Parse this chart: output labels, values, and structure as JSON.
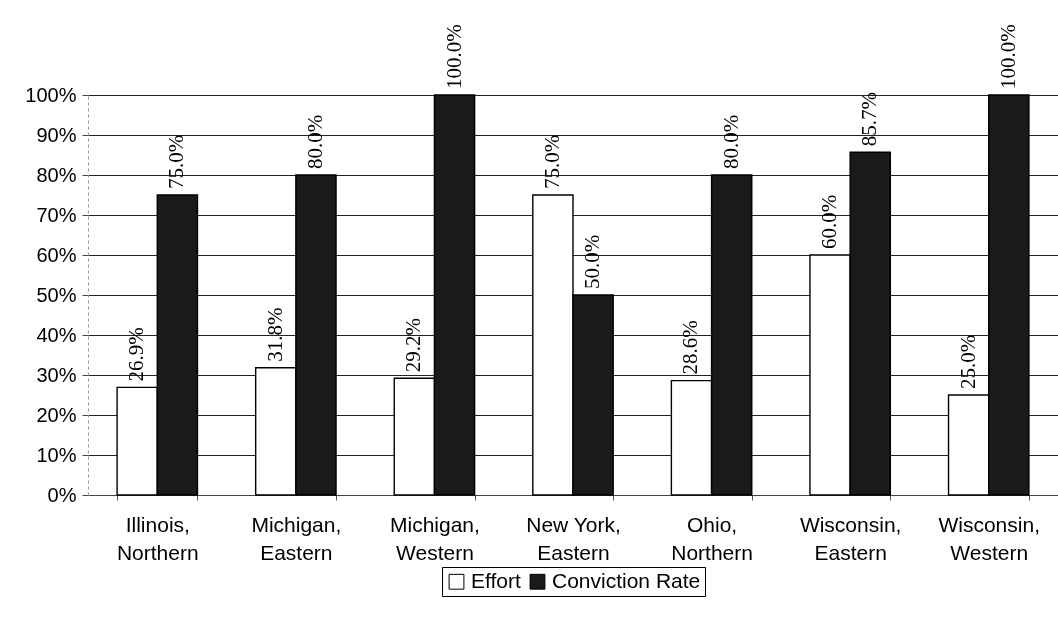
{
  "chart_data": {
    "type": "bar",
    "categories": [
      "Illinois, Northern",
      "Michigan, Eastern",
      "Michigan, Western",
      "New York, Eastern",
      "Ohio, Northern",
      "Wisconsin, Eastern",
      "Wisconsin, Western"
    ],
    "series": [
      {
        "name": "Effort",
        "color": "#ffffff",
        "values": [
          26.9,
          31.8,
          29.2,
          75.0,
          28.6,
          60.0,
          25.0
        ],
        "value_labels": [
          "26.9%",
          "31.8%",
          "29.2%",
          "75.0%",
          "28.6%",
          "60.0%",
          "25.0%"
        ]
      },
      {
        "name": "Conviction Rate",
        "color": "#1a1a1a",
        "values": [
          75.0,
          80.0,
          100.0,
          50.0,
          80.0,
          85.7,
          100.0
        ],
        "value_labels": [
          "75.0%",
          "80.0%",
          "100.0%",
          "50.0%",
          "80.0%",
          "85.7%",
          "100.0%"
        ]
      }
    ],
    "ylim": [
      0,
      100
    ],
    "yticks": [
      {
        "value": 0,
        "label": "0%"
      },
      {
        "value": 10,
        "label": "10%"
      },
      {
        "value": 20,
        "label": "20%"
      },
      {
        "value": 30,
        "label": "30%"
      },
      {
        "value": 40,
        "label": "40%"
      },
      {
        "value": 50,
        "label": "50%"
      },
      {
        "value": 60,
        "label": "60%"
      },
      {
        "value": 70,
        "label": "70%"
      },
      {
        "value": 80,
        "label": "80%"
      },
      {
        "value": 90,
        "label": "90%"
      },
      {
        "value": 100,
        "label": "100%"
      }
    ],
    "grid": "y",
    "legend": "bottom"
  }
}
